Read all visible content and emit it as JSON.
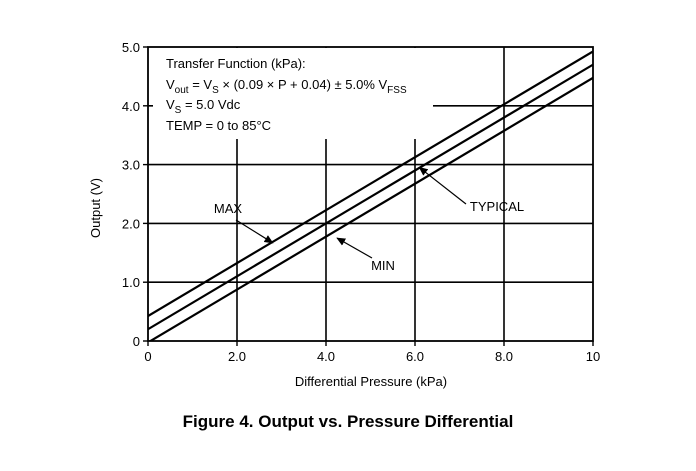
{
  "chart_data": {
    "type": "line",
    "title": "",
    "xlabel": "Differential Pressure (kPa)",
    "ylabel": "Output (V)",
    "xlim": [
      0,
      10
    ],
    "ylim": [
      0,
      5
    ],
    "grid": true,
    "x_ticks": [
      0,
      2,
      4,
      6,
      8,
      10
    ],
    "x_tick_labels": [
      "0",
      "2.0",
      "4.0",
      "6.0",
      "8.0",
      "10"
    ],
    "y_ticks": [
      0,
      1,
      2,
      3,
      4,
      5
    ],
    "y_tick_labels": [
      "0",
      "1.0",
      "2.0",
      "3.0",
      "4.0",
      "5.0"
    ],
    "series": [
      {
        "name": "MAX",
        "x": [
          0,
          10
        ],
        "y": [
          0.425,
          4.925
        ]
      },
      {
        "name": "TYPICAL",
        "x": [
          0,
          10
        ],
        "y": [
          0.2,
          4.7
        ]
      },
      {
        "name": "MIN",
        "x": [
          0,
          10
        ],
        "y": [
          -0.025,
          4.475
        ]
      }
    ],
    "annotation_lines": [
      "Transfer Function (kPa):",
      "V_out = V_S × (0.09 × P + 0.04) ± 5.0% V_FSS",
      "V_S = 5.0 Vdc",
      "TEMP = 0 to 85°C"
    ],
    "labels": [
      {
        "text": "MAX",
        "arrow_to": [
          2.8,
          1.67
        ]
      },
      {
        "text": "TYPICAL",
        "arrow_to": [
          6.1,
          2.95
        ]
      },
      {
        "text": "MIN",
        "arrow_to": [
          4.25,
          1.75
        ]
      }
    ]
  },
  "annotation": {
    "line1": "Transfer Function (kPa):",
    "line2_a": "V",
    "line2_sub_out": "out",
    "line2_b": " = V",
    "line2_sub_s": "S",
    "line2_c": " × (0.09 × P + 0.04) ± 5.0% V",
    "line2_sub_fss": "FSS",
    "line3_a": "V",
    "line3_sub_s": "S",
    "line3_b": " = 5.0 Vdc",
    "line4": "TEMP = 0 to 85°C"
  },
  "caption": "Figure 4. Output vs. Pressure Differential"
}
